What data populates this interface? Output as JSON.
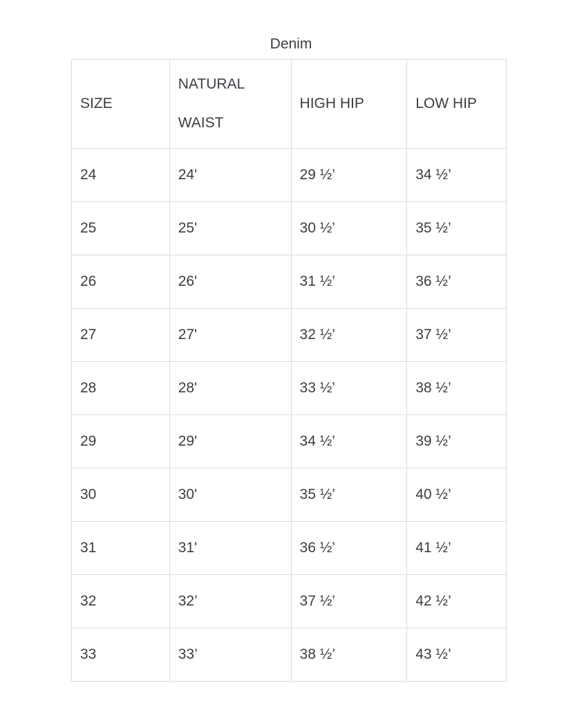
{
  "title": "Denim",
  "headers": [
    "SIZE",
    "NATURAL WAIST",
    "HIGH HIP",
    "LOW HIP"
  ],
  "rows": [
    [
      "24",
      "24'",
      "29 ½’",
      "34 ½’"
    ],
    [
      "25",
      "25'",
      "30 ½’",
      "35 ½’"
    ],
    [
      "26",
      "26'",
      "31 ½’",
      "36 ½’"
    ],
    [
      "27",
      "27'",
      "32 ½’",
      "37 ½’"
    ],
    [
      "28",
      "28'",
      "33 ½’",
      "38 ½’"
    ],
    [
      "29",
      "29'",
      "34 ½’",
      "39 ½’"
    ],
    [
      "30",
      "30'",
      "35 ½’",
      "40 ½’"
    ],
    [
      "31",
      "31'",
      "36 ½’",
      "41 ½’"
    ],
    [
      "32",
      "32’",
      "37 ½’",
      "42 ½’"
    ],
    [
      "33",
      "33’",
      "38 ½’",
      "43 ½’"
    ]
  ]
}
